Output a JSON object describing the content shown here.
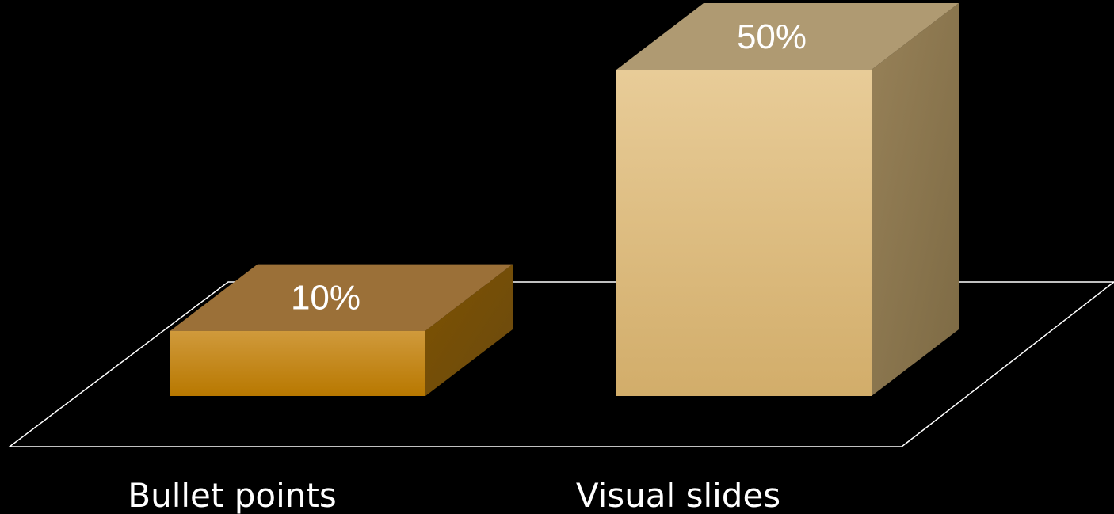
{
  "chart_data": {
    "type": "bar",
    "style": "3d-column",
    "categories": [
      "Bullet points",
      "Visual slides"
    ],
    "values": [
      10,
      50
    ],
    "value_labels": [
      "10%",
      "50%"
    ],
    "title": "",
    "xlabel": "",
    "ylabel": "",
    "ylim": [
      0,
      50
    ],
    "grid": false,
    "legend": "none",
    "colors": {
      "background": "#000000",
      "floor_line": "#ffffff",
      "series": [
        {
          "front_top": "#d09a3c",
          "front_bottom": "#b87800",
          "top": "#9b7038",
          "side_top": "#7e5200",
          "side_bottom": "#6a4a10"
        },
        {
          "front_top": "#e8cc98",
          "front_bottom": "#d2ad6a",
          "top": "#af9a72",
          "side_top": "#978158",
          "side_bottom": "#7d6a44"
        }
      ]
    }
  }
}
